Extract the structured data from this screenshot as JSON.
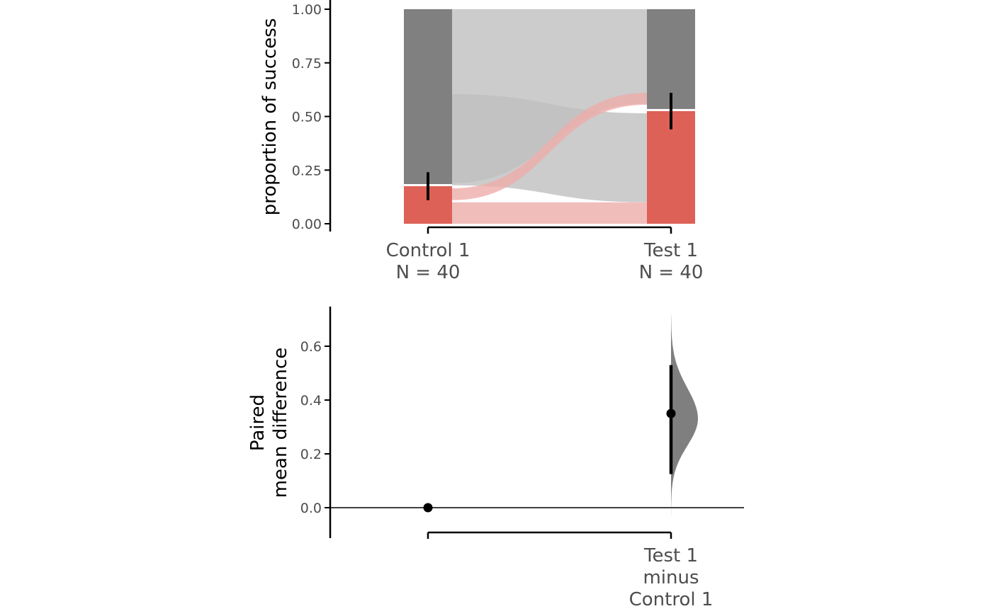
{
  "colors": {
    "failure": "#808080",
    "success": "#DD6157",
    "flow_failure": "#BFBFBF",
    "flow_success": "#EEADAA",
    "axis": "#000000",
    "tick_text": "#4d4d4d",
    "density": "#7f7f7f"
  },
  "chart_data": [
    {
      "type": "bar",
      "subtype": "stacked-proportion-sankey",
      "ylabel": "proportion of success",
      "ylim": [
        0,
        1
      ],
      "yticks": [
        {
          "value": 0.0,
          "label": "0.00"
        },
        {
          "value": 0.25,
          "label": "0.25"
        },
        {
          "value": 0.5,
          "label": "0.50"
        },
        {
          "value": 0.75,
          "label": "0.75"
        },
        {
          "value": 1.0,
          "label": "1.00"
        }
      ],
      "categories": [
        {
          "name": "Control 1",
          "n_label": "N = 40",
          "success": 0.175,
          "ci": [
            0.11,
            0.24
          ]
        },
        {
          "name": "Test 1",
          "n_label": "N = 40",
          "success": 0.525,
          "ci": [
            0.44,
            0.61
          ]
        }
      ],
      "flows": [
        {
          "from": "success",
          "to": "success",
          "proportion": 0.1
        },
        {
          "from": "success",
          "to": "failure",
          "proportion": 0.075
        },
        {
          "from": "failure",
          "to": "success",
          "proportion": 0.425
        },
        {
          "from": "failure",
          "to": "failure",
          "proportion": 0.4
        }
      ]
    },
    {
      "type": "scatter",
      "subtype": "effect-size-estimation",
      "ylabel_lines": [
        "Paired",
        "mean difference"
      ],
      "ylim": [
        -0.1,
        0.75
      ],
      "yticks": [
        {
          "value": 0.0,
          "label": "0.0"
        },
        {
          "value": 0.2,
          "label": "0.2"
        },
        {
          "value": 0.4,
          "label": "0.4"
        },
        {
          "value": 0.6,
          "label": "0.6"
        }
      ],
      "reference_line": 0,
      "comparisons": [
        {
          "label_lines": [
            "Test 1",
            "minus",
            "Control 1"
          ],
          "estimate": 0.35,
          "ci": [
            0.125,
            0.53
          ],
          "density_range": [
            -0.05,
            0.72
          ],
          "density_peak": 0.33
        }
      ],
      "control_point": 0
    }
  ]
}
